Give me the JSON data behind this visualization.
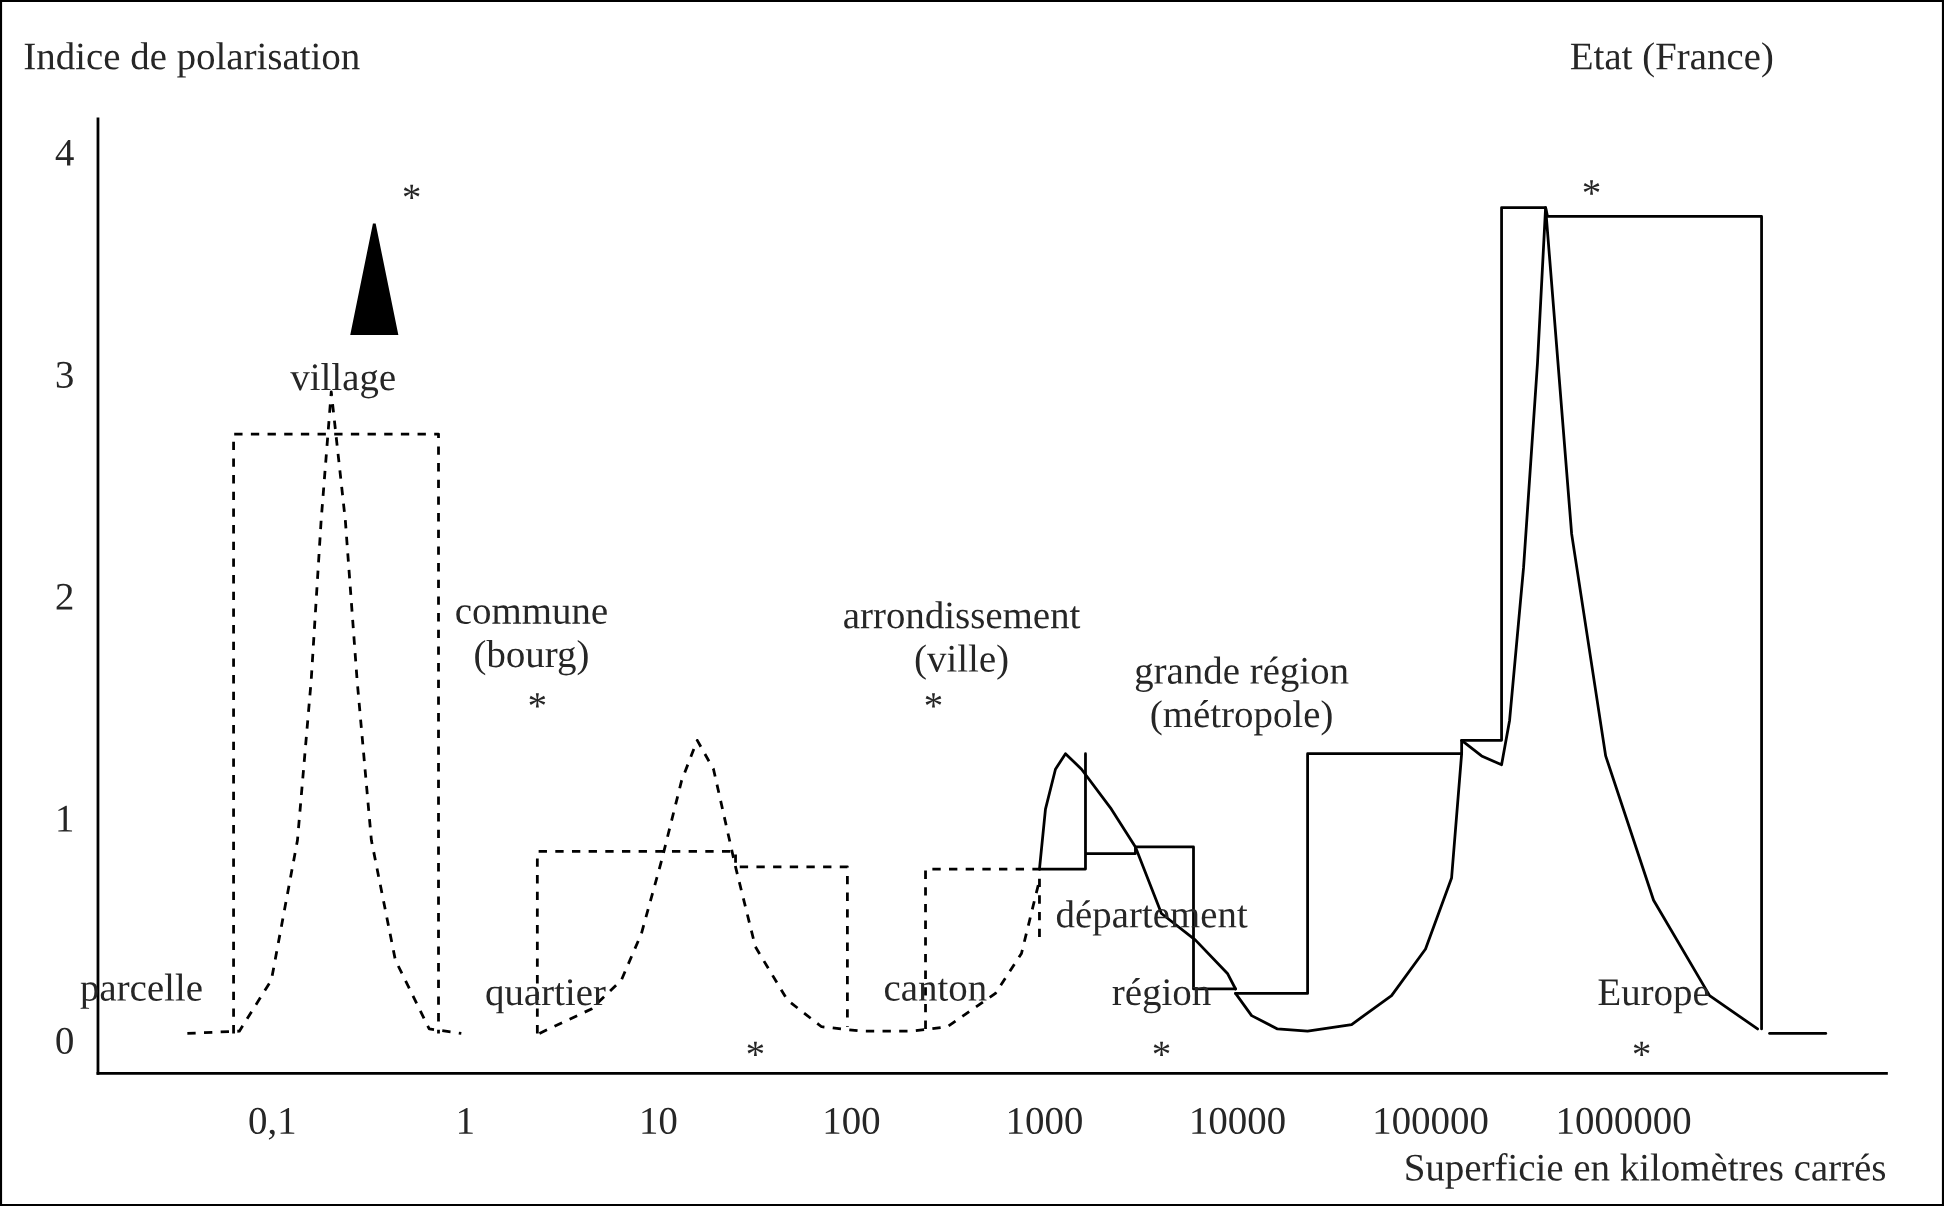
{
  "chart_data": {
    "type": "line",
    "xlabel": "Superficie en kilomètres carrés",
    "ylabel": "Indice de polarisation",
    "log": "x",
    "grid": false,
    "legend": false,
    "marker": "none",
    "xlim": [
      0.0125,
      23000000
    ],
    "ylim": [
      -0.15,
      4.15
    ],
    "xticks": [
      {
        "value": 0.1,
        "label": "0,1"
      },
      1,
      10,
      100,
      1000,
      10000,
      100000,
      1000000
    ],
    "yticks": [
      0,
      1,
      2,
      3,
      4
    ],
    "series": [
      {
        "color": "#000000",
        "line_style": "dashed",
        "x": [
          0.063,
          0.063,
          0.726,
          0.726
        ],
        "values": [
          0.03,
          2.73,
          2.73,
          0.03
        ]
      },
      {
        "color": "#000000",
        "line_style": "dashed",
        "x": [
          0.0363,
          0.0675,
          0.0989,
          0.135,
          0.159,
          0.179,
          0.202,
          0.239,
          0.275,
          0.326,
          0.434,
          0.65,
          0.953
        ],
        "values": [
          0.03,
          0.04,
          0.27,
          0.9,
          1.62,
          2.34,
          2.92,
          2.34,
          1.62,
          0.9,
          0.36,
          0.05,
          0.03
        ]
      },
      {
        "color": "#000000",
        "line_style": "dashed",
        "x": [
          2.36,
          2.36,
          25.1,
          25.1,
          95.3,
          95.3
        ],
        "values": [
          0.03,
          0.85,
          0.85,
          0.78,
          0.78,
          0.06
        ]
      },
      {
        "color": "#000000",
        "line_style": "dashed",
        "x": [
          2.42,
          4.5,
          6.43,
          8.17,
          10.4,
          13.2,
          15.9,
          19.3,
          25.1,
          31.8,
          46.6,
          70.0,
          113,
          205,
          314,
          557,
          760,
          942
        ],
        "values": [
          0.03,
          0.14,
          0.27,
          0.48,
          0.81,
          1.17,
          1.35,
          1.22,
          0.78,
          0.42,
          0.18,
          0.06,
          0.04,
          0.04,
          0.06,
          0.21,
          0.39,
          0.72
        ]
      },
      {
        "color": "#000000",
        "line_style": "dashed",
        "x": [
          242,
          242,
          942,
          942
        ],
        "values": [
          0.05,
          0.77,
          0.77,
          0.45
        ]
      },
      {
        "color": "#000000",
        "line_style": "solid",
        "x": [
          942,
          1012,
          1140,
          1285,
          1556,
          2222,
          2960,
          4036,
          6058,
          8870,
          9770
        ],
        "values": [
          0.77,
          1.04,
          1.22,
          1.29,
          1.22,
          1.04,
          0.87,
          0.57,
          0.45,
          0.3,
          0.23
        ]
      },
      {
        "color": "#000000",
        "line_style": "solid",
        "x": [
          942,
          1631,
          1631,
          1631,
          2960,
          2960,
          5916,
          5916,
          9770
        ],
        "values": [
          0.77,
          0.77,
          1.29,
          0.84,
          0.84,
          0.87,
          0.87,
          0.23,
          0.23
        ]
      },
      {
        "color": "#000000",
        "line_style": "solid",
        "x": [
          9770,
          23070,
          23070,
          144900,
          144900,
          233300,
          233300,
          394400,
          403700,
          5185000,
          5185000
        ],
        "values": [
          0.21,
          0.21,
          1.29,
          1.29,
          1.35,
          1.35,
          3.75,
          3.75,
          3.71,
          3.71,
          0.05
        ]
      },
      {
        "color": "#000000",
        "line_style": "solid",
        "x": [
          9770,
          11830,
          16110,
          23070,
          39000,
          62810,
          94190,
          128500,
          144900
        ],
        "values": [
          0.21,
          0.11,
          0.05,
          0.04,
          0.07,
          0.2,
          0.41,
          0.73,
          1.29
        ]
      },
      {
        "color": "#000000",
        "line_style": "solid",
        "x": [
          144900,
          183800,
          233300,
          256700,
          303400,
          358100,
          394400,
          538100,
          807500,
          1430000,
          2790000,
          4945000
        ],
        "values": [
          1.35,
          1.28,
          1.24,
          1.44,
          2.13,
          3.05,
          3.75,
          2.28,
          1.28,
          0.63,
          0.2,
          0.05
        ]
      },
      {
        "color": "#000000",
        "line_style": "solid",
        "x": [
          5705000,
          11150000
        ],
        "values": [
          0.03,
          0.03
        ]
      }
    ],
    "annotations": [
      "Etat (France)",
      "*",
      "village",
      "parcelle",
      "commune\n(bourg)",
      "*",
      "quartier",
      "*",
      "arrondissement\n(ville)",
      "*",
      "canton",
      "grande région\n(métropole)",
      "département",
      "région",
      "*",
      "*",
      "Europe",
      "*"
    ]
  }
}
